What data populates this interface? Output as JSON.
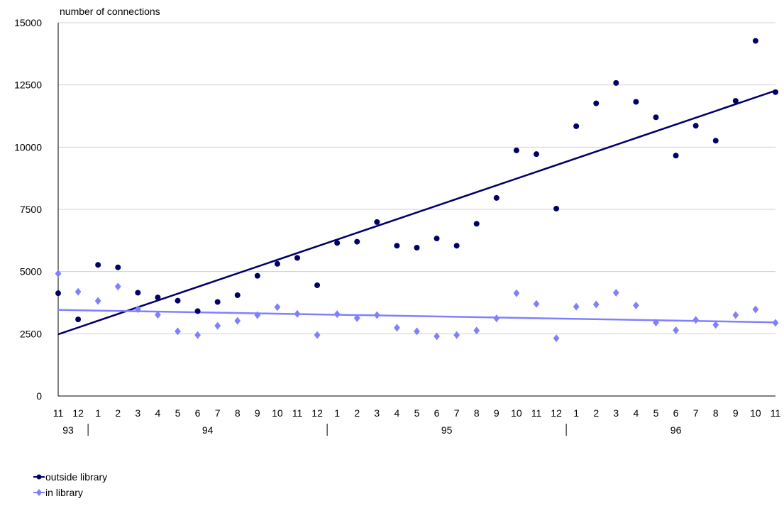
{
  "chart_data": {
    "type": "scatter",
    "ylabel": "number of connections",
    "ylim": [
      0,
      15000
    ],
    "y_ticks": [
      "0",
      "2500",
      "5000",
      "7500",
      "10000",
      "12500",
      "15000"
    ],
    "grid": true,
    "months": [
      "11",
      "12",
      "1",
      "2",
      "3",
      "4",
      "5",
      "6",
      "7",
      "8",
      "9",
      "10",
      "11",
      "12",
      "1",
      "2",
      "3",
      "4",
      "5",
      "6",
      "7",
      "8",
      "9",
      "10",
      "11",
      "12",
      "1",
      "2",
      "3",
      "4",
      "5",
      "6",
      "7",
      "8",
      "9",
      "10",
      "11"
    ],
    "years": [
      {
        "label": "93",
        "start": 0,
        "end": 1
      },
      {
        "label": "94",
        "start": 2,
        "end": 13
      },
      {
        "label": "95",
        "start": 14,
        "end": 25
      },
      {
        "label": "96",
        "start": 26,
        "end": 36
      }
    ],
    "series": [
      {
        "name": "outside library",
        "color": "#000066",
        "marker": "circle",
        "values": [
          4130,
          3080,
          5270,
          5170,
          4150,
          3960,
          3830,
          3410,
          3780,
          4050,
          4830,
          5310,
          5550,
          4450,
          6150,
          6200,
          6990,
          6040,
          5960,
          6330,
          6040,
          6920,
          7960,
          9870,
          9720,
          7530,
          10840,
          11760,
          12580,
          11820,
          11200,
          9660,
          10860,
          10260,
          11860,
          14270,
          12210
        ],
        "trendline": [
          2480,
          12270
        ]
      },
      {
        "name": "in library",
        "color": "#8080ff",
        "marker": "diamond",
        "values": [
          4920,
          4190,
          3820,
          4400,
          3490,
          3260,
          2600,
          2450,
          2820,
          3020,
          3250,
          3570,
          3300,
          2450,
          3290,
          3130,
          3250,
          2740,
          2600,
          2400,
          2450,
          2630,
          3120,
          4130,
          3700,
          2320,
          3590,
          3680,
          4150,
          3640,
          2950,
          2640,
          3060,
          2860,
          3250,
          3480,
          2940
        ],
        "trendline": [
          3460,
          2960
        ]
      }
    ],
    "legend_position": "bottom-left"
  }
}
